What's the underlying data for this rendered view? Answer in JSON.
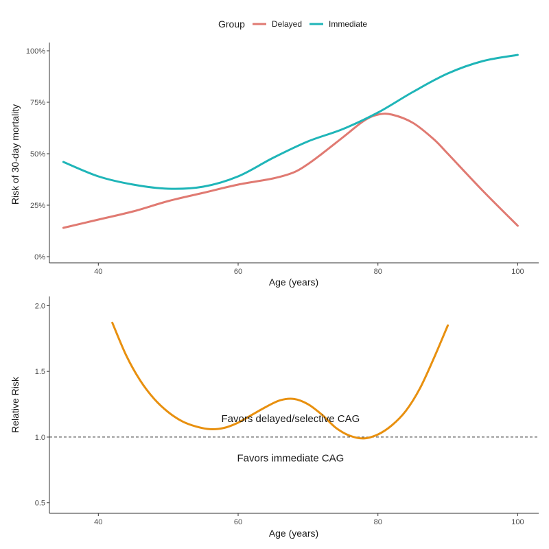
{
  "legend": {
    "title": "Group",
    "items": [
      {
        "label": "Delayed",
        "color": "#E07A72"
      },
      {
        "label": "Immediate",
        "color": "#1FB5B8"
      }
    ]
  },
  "chart_data": [
    {
      "type": "line",
      "xlabel": "Age (years)",
      "ylabel": "Risk of 30-day mortality",
      "xlim": [
        33,
        103
      ],
      "ylim": [
        -3,
        104
      ],
      "xticks": [
        40,
        60,
        80,
        100
      ],
      "xtick_labels": [
        "40",
        "60",
        "80",
        "100"
      ],
      "yticks": [
        0,
        25,
        50,
        75,
        100
      ],
      "ytick_labels": [
        "0%",
        "25%",
        "50%",
        "75%",
        "100%"
      ],
      "grid": false,
      "legend_position": "top",
      "series": [
        {
          "name": "Delayed",
          "color": "#E07A72",
          "x": [
            35,
            40,
            45,
            50,
            55,
            60,
            65,
            68,
            70,
            72,
            75,
            78,
            80,
            82,
            85,
            88,
            90,
            95,
            100
          ],
          "y": [
            14,
            18,
            22,
            27,
            31,
            35,
            38,
            41,
            45,
            50,
            58,
            66,
            69,
            69,
            65,
            57,
            50,
            32,
            15
          ]
        },
        {
          "name": "Immediate",
          "color": "#1FB5B8",
          "x": [
            35,
            40,
            45,
            50,
            55,
            60,
            65,
            70,
            75,
            80,
            85,
            90,
            95,
            100
          ],
          "y": [
            46,
            39,
            35,
            33,
            34,
            39,
            48,
            56,
            62,
            70,
            80,
            89,
            95,
            98
          ]
        }
      ]
    },
    {
      "type": "line",
      "xlabel": "Age (years)",
      "ylabel": "Relative Risk",
      "xlim": [
        33,
        103
      ],
      "ylim": [
        0.42,
        2.07
      ],
      "xticks": [
        40,
        60,
        80,
        100
      ],
      "xtick_labels": [
        "40",
        "60",
        "80",
        "100"
      ],
      "yticks": [
        0.5,
        1.0,
        1.5,
        2.0
      ],
      "ytick_labels": [
        "0.5",
        "1.0",
        "1.5",
        "2.0"
      ],
      "grid": false,
      "reference_line": 1.0,
      "annotations": [
        {
          "text": "Favors delayed/selective CAG",
          "x": 67.5,
          "y": 1.14
        },
        {
          "text": "Favors immediate CAG",
          "x": 67.5,
          "y": 0.84
        }
      ],
      "series": [
        {
          "color": "#E8900F",
          "x": [
            42,
            44,
            46,
            48,
            50,
            52,
            54,
            56,
            58,
            60,
            62,
            64,
            66,
            68,
            70,
            72,
            74,
            76,
            78,
            80,
            82,
            84,
            86,
            88,
            90
          ],
          "y": [
            1.87,
            1.62,
            1.43,
            1.29,
            1.19,
            1.12,
            1.08,
            1.06,
            1.07,
            1.11,
            1.17,
            1.23,
            1.28,
            1.29,
            1.25,
            1.17,
            1.07,
            1.01,
            0.99,
            1.02,
            1.09,
            1.2,
            1.37,
            1.6,
            1.85
          ]
        }
      ]
    }
  ]
}
